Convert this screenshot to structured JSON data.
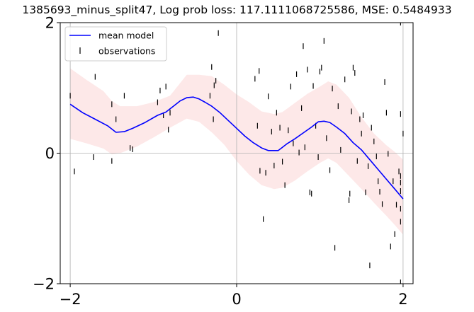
{
  "chart_data": {
    "type": "line",
    "title": "1385693_minus_split47, Log prob loss: 117.1111068725586, MSE: 0.5484933",
    "xlabel": "",
    "ylabel": "",
    "xlim": [
      -2.12,
      2.12
    ],
    "ylim": [
      -2,
      2
    ],
    "x_ticks": [
      -2,
      0,
      2
    ],
    "y_ticks": [
      -2,
      0,
      2
    ],
    "x_tick_labels": [
      "−2",
      "0",
      "2"
    ],
    "y_tick_labels": [
      "−2",
      "0",
      "2"
    ],
    "grid": true,
    "legend_position": "top-left",
    "colors": {
      "mean": "#0000ff",
      "band": "#fde8e8",
      "observations": "#000000",
      "grid": "#b0b0b0"
    },
    "legend": [
      {
        "label": "mean model",
        "marker": "line"
      },
      {
        "label": "observations",
        "marker": "tick"
      }
    ],
    "mean_model": {
      "name": "mean model",
      "x": [
        -2.0,
        -1.85,
        -1.7,
        -1.55,
        -1.45,
        -1.35,
        -1.25,
        -1.1,
        -0.95,
        -0.85,
        -0.75,
        -0.68,
        -0.6,
        -0.52,
        -0.45,
        -0.38,
        -0.3,
        -0.2,
        -0.1,
        0.0,
        0.1,
        0.2,
        0.3,
        0.38,
        0.45,
        0.5,
        0.55,
        0.6,
        0.7,
        0.8,
        0.9,
        0.98,
        1.05,
        1.12,
        1.2,
        1.3,
        1.4,
        1.5,
        1.6,
        1.7,
        1.8,
        1.9,
        2.0
      ],
      "y": [
        0.75,
        0.62,
        0.52,
        0.42,
        0.32,
        0.33,
        0.38,
        0.47,
        0.58,
        0.63,
        0.73,
        0.8,
        0.85,
        0.86,
        0.83,
        0.78,
        0.72,
        0.62,
        0.5,
        0.38,
        0.26,
        0.16,
        0.08,
        0.04,
        0.04,
        0.04,
        0.09,
        0.14,
        0.22,
        0.31,
        0.4,
        0.48,
        0.49,
        0.47,
        0.4,
        0.3,
        0.16,
        0.05,
        -0.1,
        -0.25,
        -0.4,
        -0.55,
        -0.7
      ]
    },
    "confidence_band": {
      "x": [
        -2.0,
        -1.8,
        -1.6,
        -1.5,
        -1.4,
        -1.2,
        -1.0,
        -0.8,
        -0.6,
        -0.45,
        -0.3,
        -0.15,
        0.0,
        0.15,
        0.3,
        0.45,
        0.55,
        0.7,
        0.85,
        1.0,
        1.1,
        1.2,
        1.35,
        1.5,
        1.65,
        1.8,
        1.9,
        2.0
      ],
      "upper": [
        1.3,
        1.12,
        0.95,
        0.8,
        0.72,
        0.72,
        0.78,
        0.88,
        1.2,
        1.2,
        1.18,
        1.05,
        0.9,
        0.78,
        0.64,
        0.6,
        0.63,
        0.77,
        0.91,
        1.02,
        1.1,
        1.05,
        0.85,
        0.55,
        0.3,
        0.12,
        0.02,
        -0.1
      ],
      "lower": [
        0.22,
        0.15,
        0.07,
        -0.02,
        0.0,
        0.1,
        0.24,
        0.39,
        0.53,
        0.48,
        0.32,
        0.13,
        -0.12,
        -0.33,
        -0.49,
        -0.55,
        -0.53,
        -0.42,
        -0.28,
        -0.15,
        -0.08,
        -0.15,
        -0.35,
        -0.55,
        -0.76,
        -0.96,
        -1.1,
        -1.25
      ]
    },
    "observations": {
      "name": "observations",
      "x": [
        -2.0,
        -1.95,
        -1.72,
        -1.7,
        -1.5,
        -1.5,
        -1.45,
        -1.35,
        -1.28,
        -1.25,
        -0.95,
        -0.92,
        -0.88,
        -0.85,
        -0.82,
        -0.8,
        -0.32,
        -0.3,
        -0.28,
        -0.27,
        -0.25,
        -0.22,
        0.22,
        0.25,
        0.27,
        0.28,
        0.32,
        0.35,
        0.38,
        0.42,
        0.45,
        0.48,
        0.52,
        0.55,
        0.58,
        0.62,
        0.65,
        0.68,
        0.72,
        0.75,
        0.78,
        0.8,
        0.82,
        0.85,
        0.88,
        0.9,
        0.92,
        0.95,
        0.98,
        1.0,
        1.02,
        1.05,
        1.08,
        1.12,
        1.15,
        1.18,
        1.22,
        1.25,
        1.3,
        1.35,
        1.36,
        1.38,
        1.4,
        1.42,
        1.45,
        1.48,
        1.5,
        1.52,
        1.55,
        1.58,
        1.6,
        1.62,
        1.65,
        1.68,
        1.7,
        1.72,
        1.75,
        1.78,
        1.8,
        1.82,
        1.85,
        1.88,
        1.9,
        1.92,
        1.95,
        1.97,
        2.0
      ],
      "y": [
        0.88,
        -0.28,
        -0.06,
        1.17,
        0.75,
        -0.12,
        0.52,
        0.88,
        0.08,
        0.06,
        0.78,
        0.96,
        0.58,
        1.02,
        0.36,
        0.62,
        0.88,
        1.32,
        0.52,
        1.04,
        1.11,
        1.84,
        1.14,
        0.42,
        1.26,
        -0.27,
        -1.01,
        -0.3,
        0.87,
        0.33,
        -0.19,
        0.62,
        0.39,
        -0.13,
        -0.49,
        0.35,
        1.02,
        0.15,
        1.21,
        0.01,
        0.69,
        1.64,
        0.09,
        1.28,
        -0.6,
        -0.62,
        1.03,
        0.42,
        -0.06,
        1.25,
        1.31,
        1.72,
        0.23,
        -0.26,
        0.99,
        -1.45,
        0.72,
        0.05,
        1.13,
        -0.72,
        -0.62,
        0.64,
        1.31,
        1.23,
        -0.12,
        0.52,
        0.3,
        0.58,
        -0.6,
        -0.2,
        -1.72,
        0.39,
        0.18,
        -0.05,
        -0.43,
        -0.59,
        -0.78,
        1.09,
        0.62,
        -0.01,
        -1.43,
        -0.43,
        -1.24,
        -0.79,
        -0.28,
        2.0,
        0.3
      ],
      "obs_extra": [
        -0.35,
        -0.58,
        -0.85,
        -1.05,
        -1.98,
        0.6,
        -0.45
      ]
    }
  }
}
